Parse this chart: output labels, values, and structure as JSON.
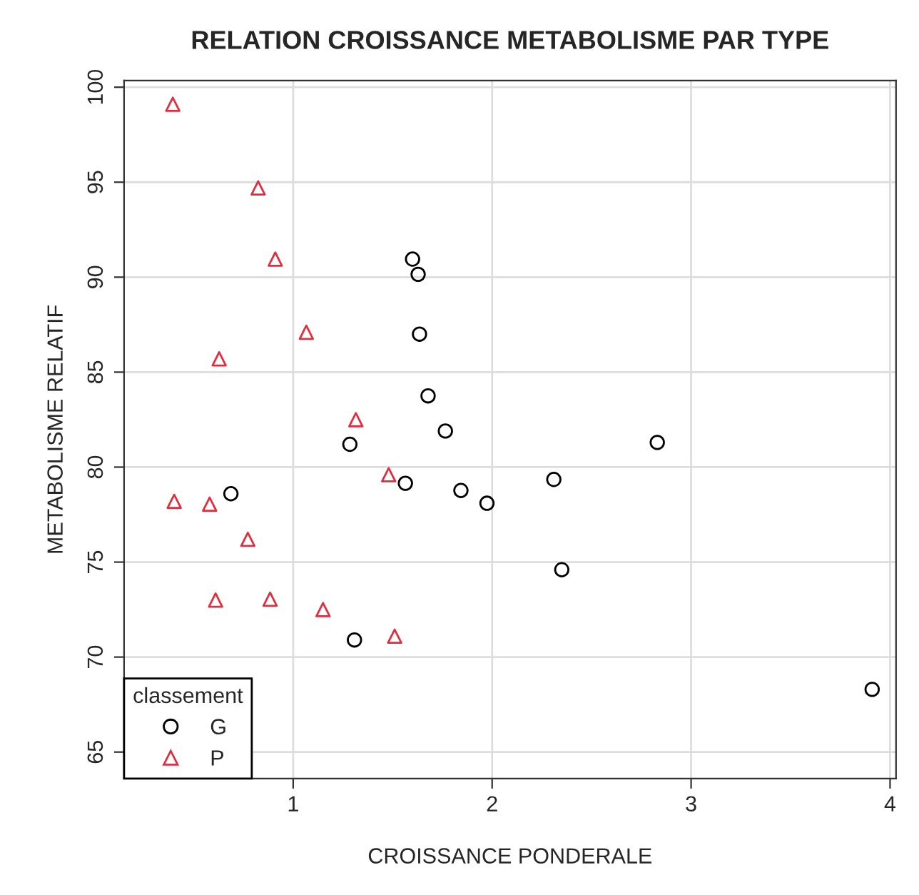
{
  "chart_data": {
    "type": "scatter",
    "title": "RELATION CROISSANCE METABOLISME PAR TYPE",
    "xlabel": "CROISSANCE PONDERALE",
    "ylabel": "METABOLISME RELATIF",
    "legend_title": "classement",
    "legend": "bottom left",
    "grid": true,
    "xlim": [
      0.15,
      4.03
    ],
    "ylim": [
      63.6,
      100.35
    ],
    "xticks": [
      1,
      2,
      3,
      4
    ],
    "yticks": [
      65,
      70,
      75,
      80,
      85,
      90,
      95,
      100
    ],
    "series": [
      {
        "name": "G",
        "color": "#000000",
        "marker": "circle",
        "x": [
          0.687,
          1.285,
          1.308,
          1.564,
          1.6,
          1.628,
          1.635,
          1.678,
          1.765,
          1.843,
          1.974,
          2.31,
          2.35,
          2.83,
          3.91
        ],
        "values": [
          78.6,
          81.2,
          70.9,
          79.15,
          90.95,
          90.15,
          87.0,
          83.75,
          81.9,
          78.77,
          78.1,
          79.35,
          74.6,
          81.3,
          68.3
        ]
      },
      {
        "name": "P",
        "color": "#df2f3f",
        "marker": "triangle",
        "x": [
          0.395,
          0.824,
          0.91,
          1.066,
          0.628,
          1.315,
          1.48,
          0.402,
          0.58,
          0.772,
          0.61,
          0.884,
          1.15,
          1.51
        ],
        "values": [
          99.1,
          94.7,
          90.95,
          87.1,
          85.7,
          82.5,
          79.6,
          78.2,
          78.05,
          76.2,
          73.0,
          73.05,
          72.5,
          71.1
        ]
      }
    ]
  }
}
